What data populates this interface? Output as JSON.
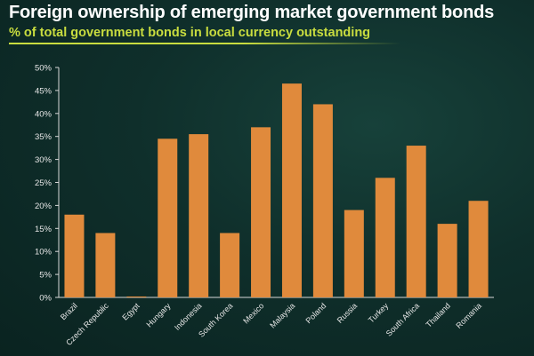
{
  "title": "Foreign ownership of emerging market government bonds",
  "subtitle": "% of total government bonds in local currency outstanding",
  "colors": {
    "bar": "#e08a3c",
    "axis": "#d8d8d8",
    "tick_text": "#e6e6e6",
    "subtitle": "#c9dd3f"
  },
  "chart_data": {
    "type": "bar",
    "title": "Foreign ownership of emerging market government bonds",
    "subtitle": "% of total government bonds in local currency outstanding",
    "xlabel": "",
    "ylabel": "",
    "categories": [
      "Brazil",
      "Czech Republic",
      "Egypt",
      "Hungary",
      "Indonesia",
      "South Korea",
      "Mexico",
      "Malaysia",
      "Poland",
      "Russia",
      "Turkey",
      "South Africa",
      "Thailand",
      "Romania"
    ],
    "values": [
      18,
      14,
      0.2,
      34.5,
      35.5,
      14,
      37,
      46.5,
      42,
      19,
      26,
      33,
      16,
      21
    ],
    "ylim": [
      0,
      50
    ],
    "yticks": [
      0,
      5,
      10,
      15,
      20,
      25,
      30,
      35,
      40,
      45,
      50
    ],
    "ytick_labels": [
      "0%",
      "5%",
      "10%",
      "15%",
      "20%",
      "25%",
      "30%",
      "35%",
      "40%",
      "45%",
      "50%"
    ],
    "grid": false,
    "legend": "none"
  }
}
